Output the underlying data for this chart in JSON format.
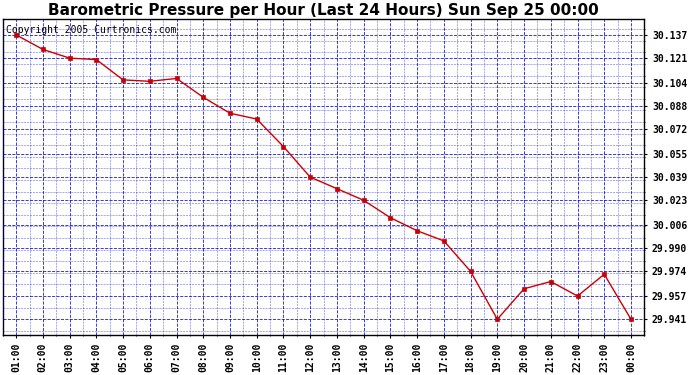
{
  "title": "Barometric Pressure per Hour (Last 24 Hours) Sun Sep 25 00:00",
  "copyright_text": "Copyright 2005 Curtronics.com",
  "x_labels": [
    "01:00",
    "02:00",
    "03:00",
    "04:00",
    "05:00",
    "06:00",
    "07:00",
    "08:00",
    "09:00",
    "10:00",
    "11:00",
    "12:00",
    "13:00",
    "14:00",
    "15:00",
    "16:00",
    "17:00",
    "18:00",
    "19:00",
    "20:00",
    "21:00",
    "22:00",
    "23:00",
    "00:00"
  ],
  "hours": [
    1,
    2,
    3,
    4,
    5,
    6,
    7,
    8,
    9,
    10,
    11,
    12,
    13,
    14,
    15,
    16,
    17,
    18,
    19,
    20,
    21,
    22,
    23,
    24
  ],
  "pressure_values": [
    30.137,
    30.127,
    30.121,
    30.12,
    30.106,
    30.105,
    30.107,
    30.094,
    30.083,
    30.079,
    30.06,
    30.039,
    30.031,
    30.023,
    30.011,
    30.002,
    29.995,
    29.974,
    29.941,
    29.962,
    29.967,
    29.957,
    29.972,
    29.941
  ],
  "yticks": [
    29.941,
    29.957,
    29.974,
    29.99,
    30.006,
    30.023,
    30.039,
    30.055,
    30.072,
    30.088,
    30.104,
    30.121,
    30.137
  ],
  "ymin": 29.93,
  "ymax": 30.148,
  "line_color": "#cc0000",
  "marker_color": "#cc0000",
  "grid_color": "#0000cc",
  "background_color": "#ffffff",
  "plot_background": "#ffffff",
  "title_fontsize": 11,
  "tick_fontsize": 7,
  "copyright_fontsize": 7
}
